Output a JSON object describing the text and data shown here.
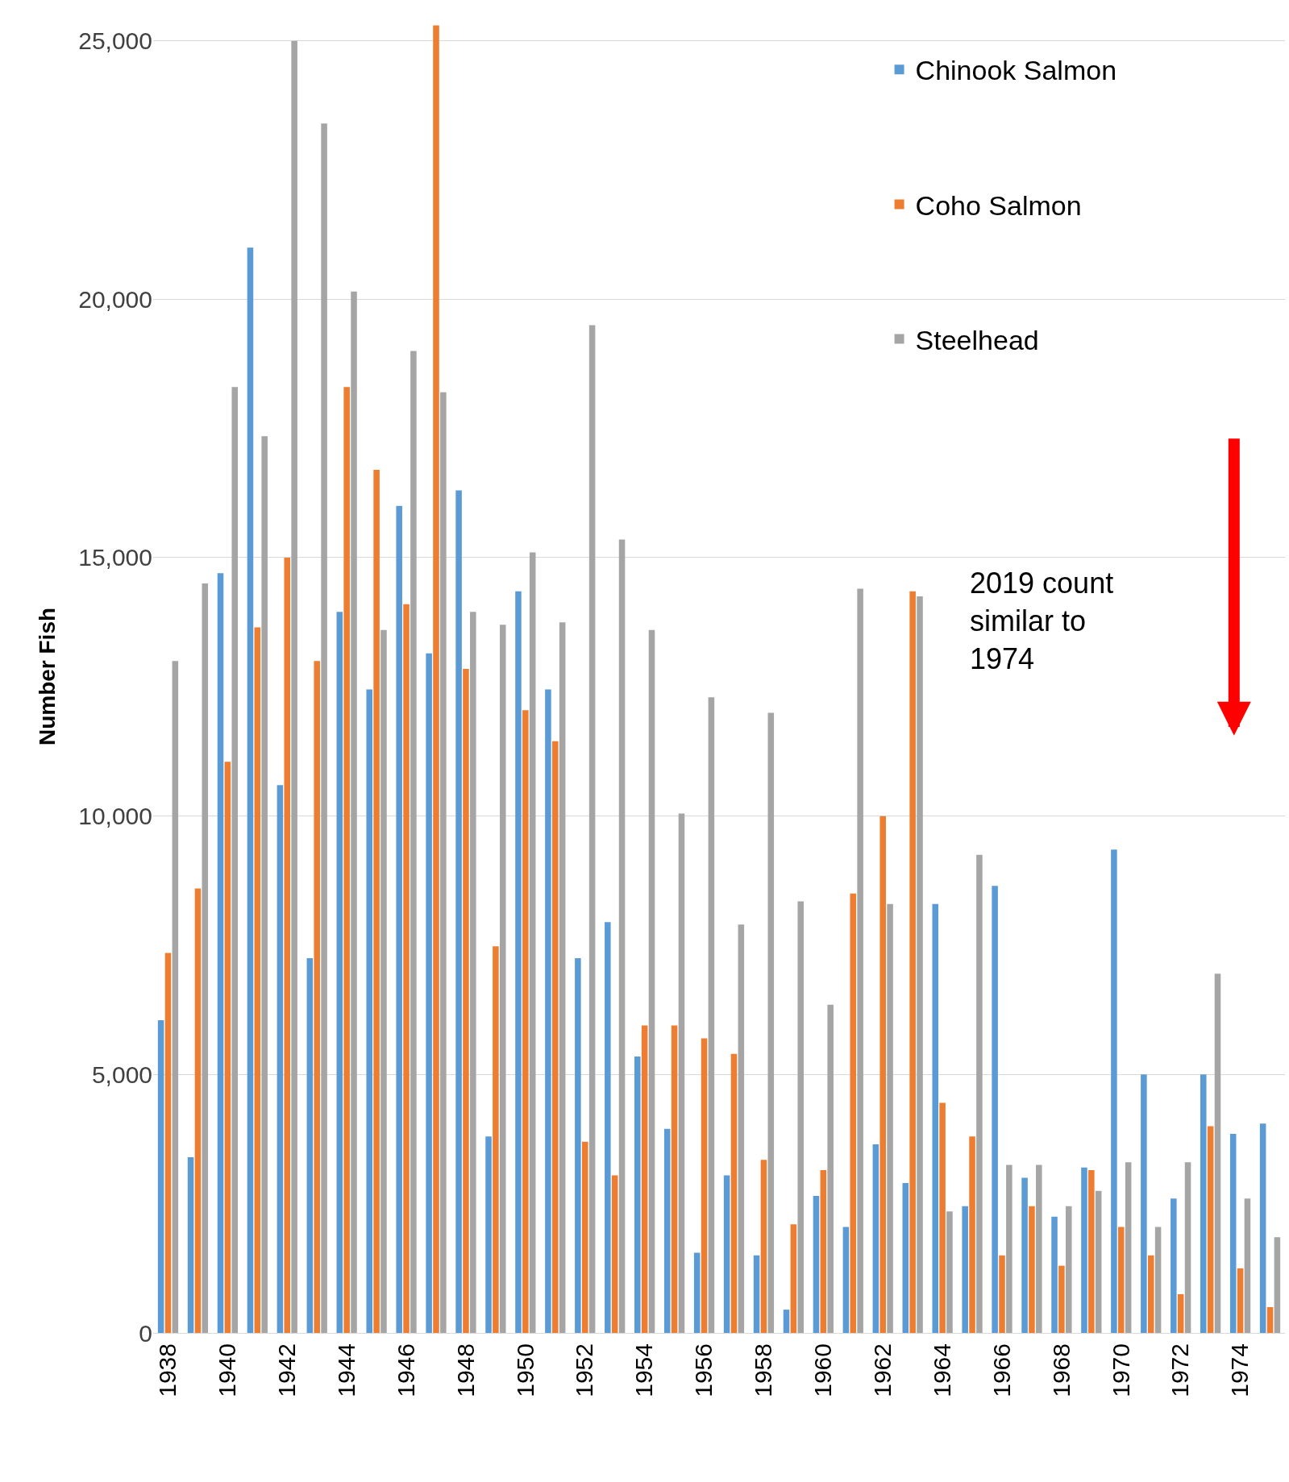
{
  "chart_data": {
    "type": "bar",
    "ylabel": "Number Fish",
    "categories": [
      "1938",
      null,
      "1940",
      null,
      "1942",
      null,
      "1944",
      null,
      "1946",
      null,
      "1948",
      null,
      "1950",
      null,
      "1952",
      null,
      "1954",
      null,
      "1956",
      null,
      "1958",
      null,
      "1960",
      null,
      "1962",
      null,
      "1964",
      null,
      "1966",
      null,
      "1968",
      null,
      "1970",
      null,
      "1972",
      null,
      "1974",
      null
    ],
    "series": [
      {
        "name": "Chinook Salmon",
        "color": "#5b9bd5",
        "values": [
          6050,
          3400,
          14700,
          21000,
          10600,
          7250,
          13950,
          12450,
          16000,
          13150,
          16300,
          3800,
          14350,
          12450,
          7250,
          7950,
          5350,
          3950,
          1550,
          3050,
          1500,
          450,
          2650,
          2050,
          3650,
          2900,
          8300,
          2450,
          8650,
          3000,
          2250,
          3200,
          9350,
          5000,
          2600,
          5000,
          3850,
          4050
        ]
      },
      {
        "name": "Coho Salmon",
        "color": "#ed7d31",
        "values": [
          7350,
          8600,
          11050,
          13650,
          15000,
          13000,
          18300,
          16700,
          14100,
          25300,
          12850,
          7480,
          12050,
          11450,
          3700,
          3050,
          5950,
          5950,
          5700,
          5400,
          3350,
          2100,
          3150,
          8500,
          10000,
          14350,
          4450,
          3800,
          1500,
          2450,
          1300,
          3150,
          2050,
          1500,
          750,
          4000,
          1250,
          500
        ]
      },
      {
        "name": "Steelhead",
        "color": "#a5a5a5",
        "values": [
          13000,
          14500,
          18300,
          17350,
          25000,
          23400,
          20150,
          13600,
          19000,
          18200,
          13950,
          13700,
          15100,
          13750,
          19500,
          15350,
          13600,
          10050,
          12300,
          7900,
          12000,
          8350,
          6350,
          14400,
          8300,
          14250,
          2350,
          9250,
          3250,
          3250,
          2450,
          2750,
          3300,
          2050,
          3300,
          6950,
          2600,
          1850
        ]
      }
    ],
    "ylim": [
      0,
      25400
    ],
    "yticks": [
      0,
      {
        "value": 5000,
        "label": "5,000"
      },
      {
        "value": 10000,
        "label": "10,000"
      },
      {
        "value": 15000,
        "label": "15,000"
      },
      {
        "value": 20000,
        "label": "20,000"
      },
      {
        "value": 25000,
        "label": "25,000"
      }
    ],
    "grid": "y",
    "legend": "top right",
    "annotations": [
      "2019 count similar to 1974"
    ]
  }
}
